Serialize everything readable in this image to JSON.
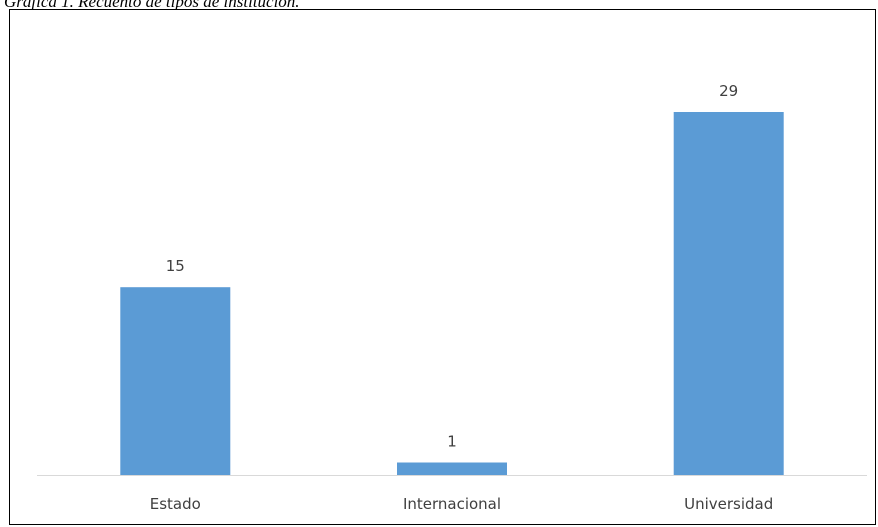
{
  "figure": {
    "caption": "Gráfica 1. Recuento de tipos de institución."
  },
  "chart_data": {
    "type": "bar",
    "title": "",
    "xlabel": "",
    "ylabel": "",
    "categories": [
      "Estado",
      "Internacional",
      "Universidad"
    ],
    "values": [
      15,
      1,
      29
    ],
    "ylim": [
      0,
      30
    ],
    "grid": false,
    "legend": "none",
    "bar_color": "#5b9bd5",
    "axis_color": "#d9d9d9",
    "label_color": "#404040"
  }
}
